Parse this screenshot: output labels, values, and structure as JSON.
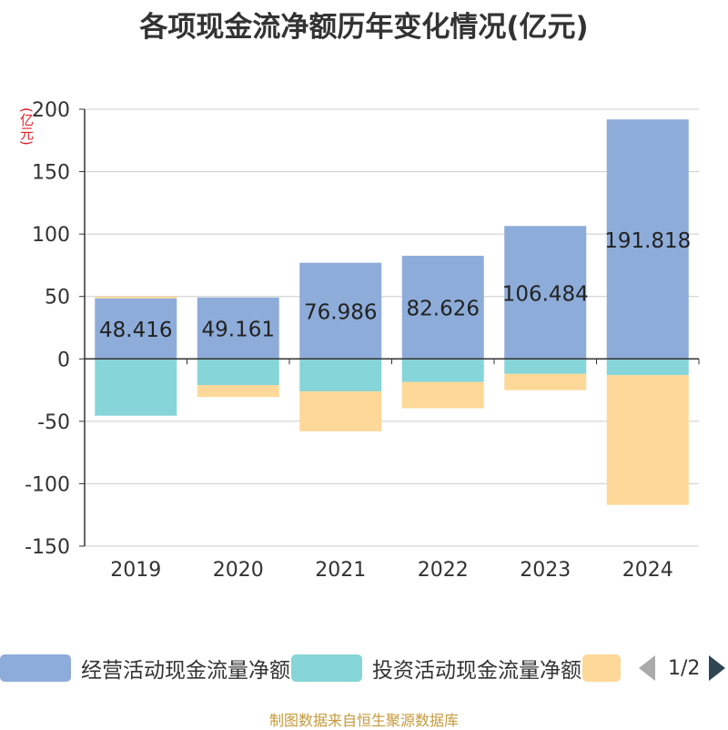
{
  "chart_data": {
    "type": "bar",
    "stacked": true,
    "title": "各项现金流净额历年变化情况(亿元)",
    "ylabel": "(亿元)",
    "ylim": [
      -150,
      200
    ],
    "yticks": [
      200,
      150,
      100,
      50,
      0,
      -50,
      -100,
      -150
    ],
    "categories": [
      "2019",
      "2020",
      "2021",
      "2022",
      "2023",
      "2024"
    ],
    "series": [
      {
        "name": "经营活动现金流量净额",
        "color": "#8eacd9",
        "values": [
          48.416,
          49.161,
          76.986,
          82.626,
          106.484,
          191.818
        ],
        "labels": [
          "48.416",
          "49.161",
          "76.986",
          "82.626",
          "106.484",
          "191.818"
        ]
      },
      {
        "name": "投资活动现金流量净额",
        "color": "#86d5d8",
        "values": [
          -45.5,
          -21,
          -26,
          -18.5,
          -12,
          -13
        ]
      },
      {
        "name": "",
        "color": "#fed898",
        "values": [
          1.5,
          -9.5,
          -32,
          -21,
          -13,
          -104
        ]
      }
    ]
  },
  "legend": {
    "items": [
      {
        "label": "经营活动现金流量净额",
        "color": "#8eacd9"
      },
      {
        "label": "投资活动现金流量净额",
        "color": "#86d5d8"
      },
      {
        "label": "",
        "color": "#fed898"
      }
    ],
    "pager": "1/2"
  },
  "source": "制图数据来自恒生聚源数据库"
}
